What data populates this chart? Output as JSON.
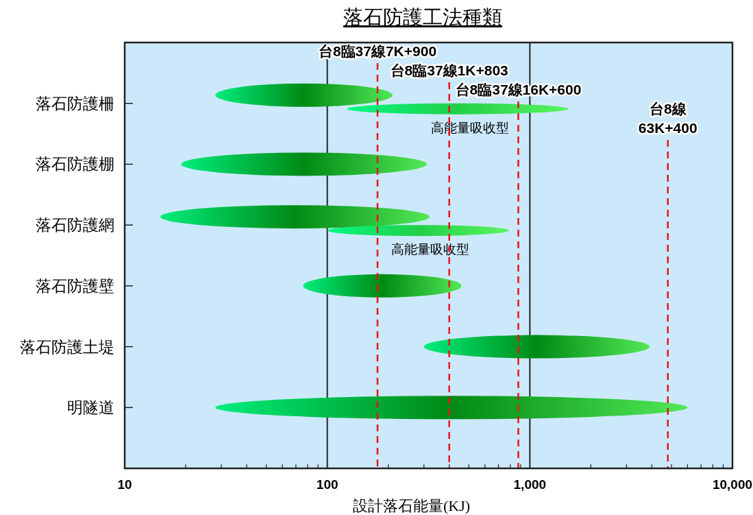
{
  "chart_data": {
    "type": "bar",
    "orientation": "horizontal",
    "title": "落石防護工法種類",
    "xlabel": "設計落石能量(KJ)",
    "categories": [
      "落石防護柵",
      "落石防護棚",
      "落石防護網",
      "落石防護壁",
      "落石防護土堤",
      "明隧道"
    ],
    "log": "x",
    "xlim": [
      10,
      10000
    ],
    "xticks": [
      10,
      100,
      {
        "value": 1000,
        "label": "1,000"
      },
      {
        "value": 10000,
        "label": "10,000"
      }
    ],
    "grid": "x",
    "series": [
      {
        "color": "#008a14",
        "base": [
          28,
          19,
          15,
          76,
          300,
          28
        ],
        "values": [
          182,
          291,
          305,
          384,
          3600,
          5972
        ]
      },
      {
        "color": "#22d048",
        "base": [
          125,
          null,
          100,
          null,
          null,
          null
        ],
        "values": [
          1425,
          null,
          690,
          null,
          null,
          null
        ]
      }
    ],
    "ref_lines": [
      {
        "axis": "x",
        "value": 177,
        "label": "台8臨37線7K+900",
        "color": "#e8141c",
        "line_style": "dashed"
      },
      {
        "axis": "x",
        "value": 400,
        "label": "台8臨37線1K+803",
        "color": "#e8141c",
        "line_style": "dashed"
      },
      {
        "axis": "x",
        "value": 877,
        "label": "台8臨37線16K+600",
        "color": "#e8141c",
        "line_style": "dashed"
      },
      {
        "axis": "x",
        "value": 4800,
        "label": "台8線\n63K+400",
        "color": "#e8141c",
        "line_style": "dashed"
      }
    ],
    "annotations": [
      "高能量吸收型",
      "高能量吸收型"
    ]
  }
}
